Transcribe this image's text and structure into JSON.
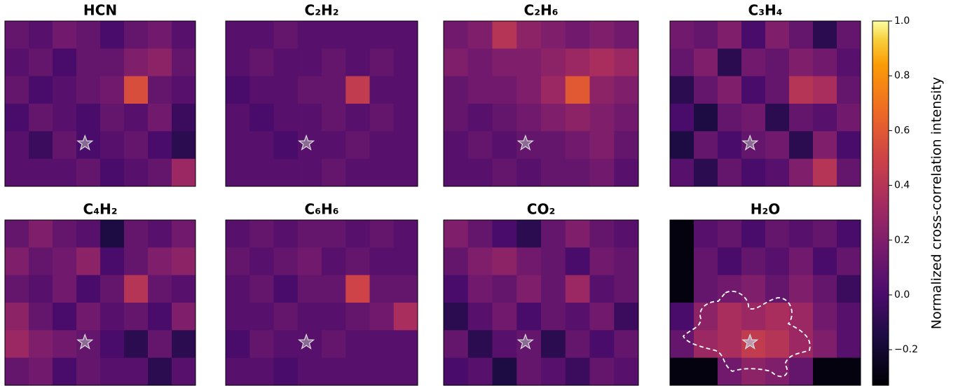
{
  "chart_data": {
    "type": "heatmap",
    "colormap": "inferno",
    "colorbar_label": "Normalized cross-correlation intensity",
    "ylim": [
      -0.33,
      1.0
    ],
    "yticks": [
      {
        "value": -0.2,
        "label": "−0.2"
      },
      {
        "value": 0.0,
        "label": "0.0"
      },
      {
        "value": 0.2,
        "label": "0.2"
      },
      {
        "value": 0.4,
        "label": "0.4"
      },
      {
        "value": 0.6,
        "label": "0.6"
      },
      {
        "value": 0.8,
        "label": "0.8"
      },
      {
        "value": 1.0,
        "label": "1.0"
      }
    ],
    "panels": [
      {
        "title": "HCN",
        "values": [
          [
            0.1,
            0.05,
            0.15,
            0.1,
            0.0,
            0.1,
            0.15,
            0.05
          ],
          [
            0.05,
            0.1,
            0.0,
            0.1,
            0.1,
            0.2,
            0.25,
            0.1
          ],
          [
            0.1,
            0.0,
            0.05,
            0.1,
            0.15,
            0.55,
            0.1,
            0.05
          ],
          [
            0.0,
            0.1,
            0.05,
            0.0,
            0.1,
            0.05,
            0.15,
            -0.05
          ],
          [
            0.05,
            -0.05,
            0.1,
            0.0,
            0.05,
            0.1,
            0.0,
            -0.1
          ],
          [
            0.05,
            0.05,
            0.05,
            0.1,
            0.0,
            0.05,
            0.1,
            0.3
          ]
        ]
      },
      {
        "title": "C₂H₂",
        "values": [
          [
            0.05,
            0.05,
            0.1,
            0.05,
            0.05,
            0.05,
            0.05,
            0.05
          ],
          [
            0.05,
            0.1,
            0.05,
            0.05,
            0.1,
            0.05,
            0.1,
            0.05
          ],
          [
            0.0,
            0.05,
            0.05,
            0.1,
            0.1,
            0.45,
            0.05,
            0.05
          ],
          [
            0.05,
            0.0,
            0.05,
            0.05,
            0.1,
            0.05,
            0.1,
            0.05
          ],
          [
            0.05,
            0.05,
            0.0,
            0.05,
            0.05,
            0.1,
            0.05,
            0.05
          ],
          [
            0.05,
            0.05,
            0.05,
            0.05,
            0.1,
            0.05,
            0.05,
            0.05
          ]
        ]
      },
      {
        "title": "C₂H₆",
        "values": [
          [
            0.15,
            0.2,
            0.4,
            0.25,
            0.2,
            0.15,
            0.2,
            0.15
          ],
          [
            0.2,
            0.15,
            0.2,
            0.2,
            0.25,
            0.3,
            0.35,
            0.3
          ],
          [
            0.1,
            0.15,
            0.15,
            0.2,
            0.3,
            0.6,
            0.25,
            0.2
          ],
          [
            0.1,
            0.05,
            0.1,
            0.15,
            0.2,
            0.25,
            0.2,
            0.15
          ],
          [
            0.05,
            0.1,
            0.05,
            0.1,
            0.1,
            0.15,
            0.2,
            0.1
          ],
          [
            0.05,
            0.05,
            0.1,
            0.05,
            0.1,
            0.1,
            0.15,
            0.05
          ]
        ]
      },
      {
        "title": "C₃H₄",
        "values": [
          [
            0.15,
            0.1,
            0.2,
            0.0,
            0.2,
            0.1,
            -0.1,
            0.1
          ],
          [
            0.1,
            0.2,
            -0.1,
            0.15,
            0.1,
            0.2,
            0.15,
            0.05
          ],
          [
            -0.1,
            0.1,
            0.2,
            0.0,
            0.1,
            0.4,
            0.35,
            0.1
          ],
          [
            0.0,
            -0.15,
            0.1,
            0.15,
            -0.1,
            0.1,
            0.05,
            0.15
          ],
          [
            -0.15,
            0.1,
            0.0,
            0.1,
            0.15,
            -0.1,
            0.2,
            0.0
          ],
          [
            0.05,
            -0.1,
            0.1,
            0.0,
            0.05,
            0.2,
            0.4,
            0.1
          ]
        ]
      },
      {
        "title": "C₄H₂",
        "values": [
          [
            0.1,
            0.2,
            0.1,
            0.05,
            -0.15,
            0.1,
            0.05,
            0.15
          ],
          [
            0.2,
            0.1,
            0.15,
            0.25,
            0.0,
            0.1,
            0.2,
            0.25
          ],
          [
            0.1,
            0.05,
            0.15,
            0.0,
            0.1,
            0.4,
            0.1,
            0.05
          ],
          [
            0.25,
            0.1,
            0.0,
            0.15,
            0.05,
            0.1,
            0.0,
            0.2
          ],
          [
            0.3,
            0.2,
            0.15,
            0.1,
            0.0,
            -0.1,
            0.1,
            -0.1
          ],
          [
            0.1,
            0.15,
            0.0,
            0.1,
            0.05,
            0.05,
            -0.1,
            0.05
          ]
        ]
      },
      {
        "title": "C₆H₆",
        "values": [
          [
            0.05,
            0.1,
            0.05,
            0.1,
            0.1,
            0.05,
            0.1,
            0.05
          ],
          [
            0.1,
            0.05,
            0.1,
            0.15,
            0.05,
            0.1,
            0.05,
            0.05
          ],
          [
            0.05,
            0.1,
            0.0,
            0.1,
            0.1,
            0.5,
            0.1,
            0.1
          ],
          [
            0.05,
            0.05,
            0.1,
            0.05,
            0.05,
            0.1,
            0.15,
            0.35
          ],
          [
            0.0,
            0.1,
            0.05,
            0.05,
            0.1,
            0.05,
            0.05,
            0.05
          ],
          [
            0.05,
            0.05,
            0.0,
            0.05,
            0.05,
            0.05,
            0.05,
            0.05
          ]
        ]
      },
      {
        "title": "CO₂",
        "values": [
          [
            0.2,
            0.1,
            0.0,
            -0.1,
            0.1,
            0.2,
            0.1,
            0.05
          ],
          [
            0.1,
            0.2,
            0.25,
            0.15,
            0.1,
            0.0,
            0.15,
            0.1
          ],
          [
            0.0,
            0.15,
            0.1,
            0.2,
            0.1,
            0.3,
            0.05,
            0.1
          ],
          [
            -0.1,
            0.05,
            0.15,
            0.0,
            0.1,
            0.05,
            0.15,
            -0.05
          ],
          [
            0.1,
            -0.1,
            0.05,
            0.1,
            -0.1,
            0.1,
            0.0,
            0.1
          ],
          [
            0.0,
            0.05,
            -0.15,
            0.1,
            0.05,
            -0.05,
            0.1,
            0.05
          ]
        ]
      },
      {
        "title": "H₂O",
        "values": [
          [
            -0.3,
            0.05,
            0.1,
            0.0,
            0.1,
            0.05,
            0.1,
            0.0
          ],
          [
            -0.3,
            0.1,
            0.0,
            0.1,
            0.05,
            0.15,
            0.0,
            0.1
          ],
          [
            -0.3,
            0.1,
            0.15,
            0.2,
            0.1,
            0.2,
            0.1,
            -0.05
          ],
          [
            0.0,
            0.25,
            0.35,
            0.3,
            0.35,
            0.3,
            0.15,
            0.05
          ],
          [
            0.1,
            0.3,
            0.35,
            0.45,
            0.4,
            0.3,
            0.2,
            0.05
          ],
          [
            -0.3,
            -0.3,
            0.15,
            0.25,
            0.2,
            0.1,
            -0.3,
            -0.3
          ]
        ]
      }
    ]
  }
}
